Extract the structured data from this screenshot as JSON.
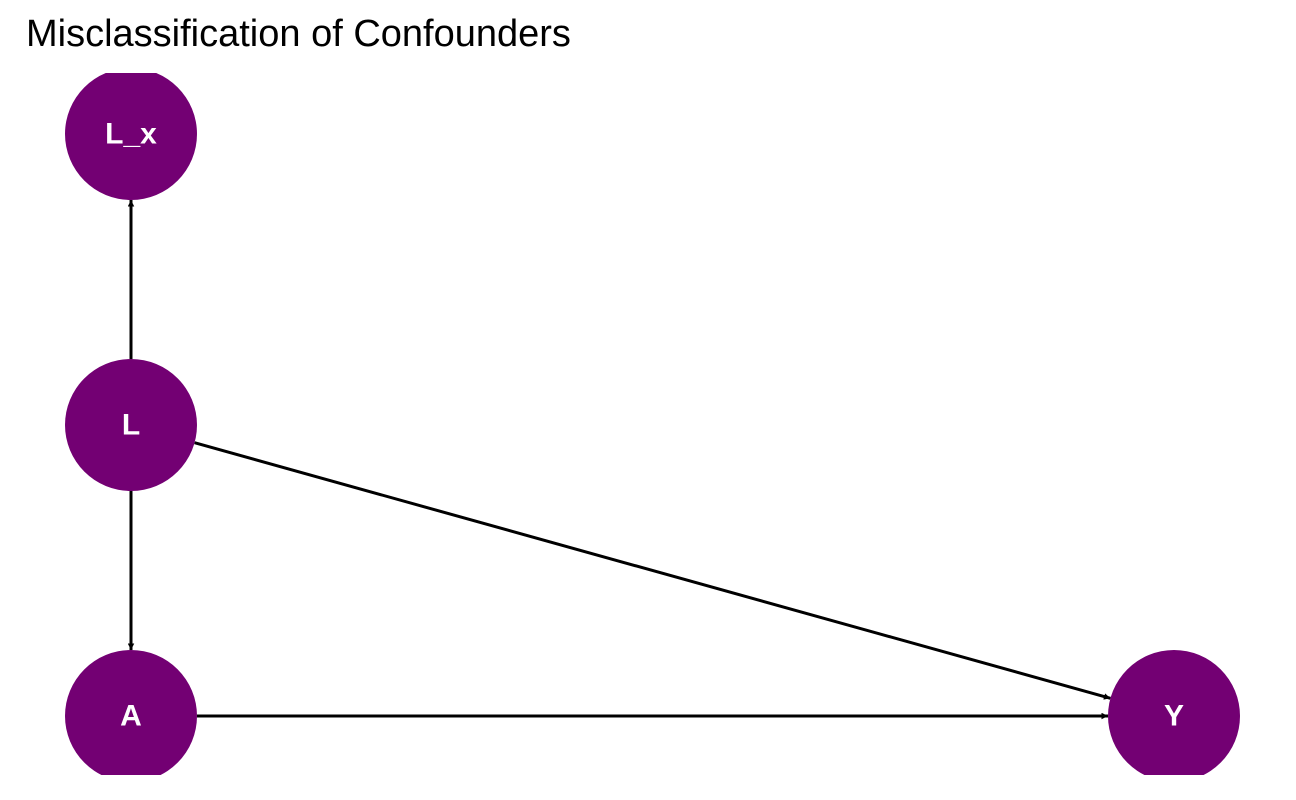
{
  "title": "Misclassification of Confounders",
  "colors": {
    "node_fill": "#730073",
    "node_text": "#ffffff",
    "edge": "#000000"
  },
  "nodes": [
    {
      "id": "L_x",
      "label": "L_x"
    },
    {
      "id": "L",
      "label": "L"
    },
    {
      "id": "A",
      "label": "A"
    },
    {
      "id": "Y",
      "label": "Y"
    }
  ],
  "edges": [
    {
      "from": "L",
      "to": "L_x"
    },
    {
      "from": "L",
      "to": "A"
    },
    {
      "from": "L",
      "to": "Y"
    },
    {
      "from": "A",
      "to": "Y"
    }
  ]
}
